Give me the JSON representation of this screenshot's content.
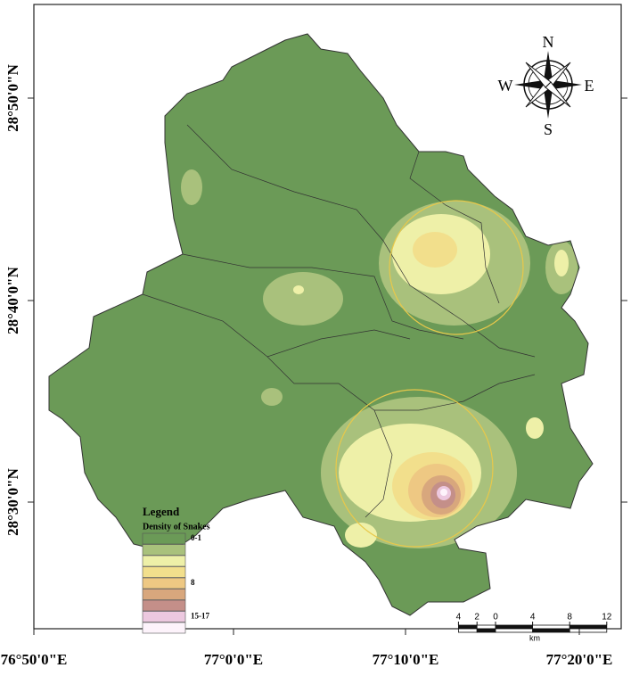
{
  "map": {
    "x_labels": [
      "76°50'0\"E",
      "77°0'0\"E",
      "77°10'0\"E",
      "77°20'0\"E"
    ],
    "y_labels": [
      "28°50'0\"N",
      "28°40'0\"N",
      "28°30'0\"N"
    ],
    "compass": {
      "n": "N",
      "s": "S",
      "e": "E",
      "w": "W"
    },
    "legend": {
      "title": "Legend",
      "subtitle": "Density of Snakes",
      "classes": [
        {
          "label": "0-1",
          "color": "#6b9a57"
        },
        {
          "color": "#a9c17c"
        },
        {
          "color": "#eef0a8"
        },
        {
          "color": "#f2df8c"
        },
        {
          "label": "8",
          "color": "#eec883"
        },
        {
          "color": "#d8a77d"
        },
        {
          "color": "#c48f89"
        },
        {
          "label": "15-17",
          "color": "#ecc8df"
        },
        {
          "color": "#fdf3fb"
        }
      ]
    },
    "scale_bar": {
      "ticks": [
        {
          "value": -4,
          "label": "4"
        },
        {
          "value": -2,
          "label": "2"
        },
        0,
        4,
        8,
        12
      ],
      "unit": "km"
    }
  }
}
